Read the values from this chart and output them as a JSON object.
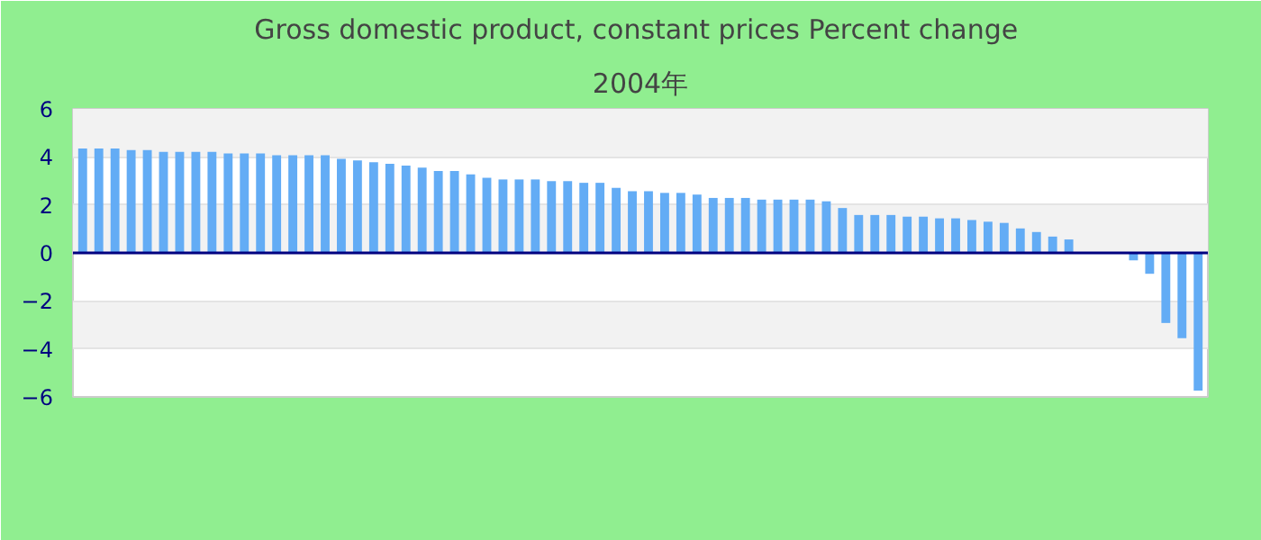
{
  "chart_data": {
    "type": "bar",
    "title": "Gross domestic product, constant prices  Percent change",
    "subtitle": "2004年",
    "categories": [
      null,
      null,
      null,
      null,
      null,
      null,
      null,
      null,
      null,
      null,
      null,
      null,
      null,
      null,
      null,
      null,
      null,
      null,
      null,
      null,
      null,
      null,
      null,
      null,
      null,
      null,
      null,
      null,
      null,
      null,
      null,
      null,
      null,
      null,
      null,
      null,
      null,
      null,
      null,
      null,
      null,
      null,
      null,
      null,
      null,
      null,
      null,
      null,
      null,
      null,
      null,
      null,
      null,
      null,
      null,
      null,
      null,
      null,
      null,
      null,
      null,
      null,
      null,
      null,
      null,
      null,
      null,
      null,
      null,
      null
    ],
    "values": [
      4.35,
      4.35,
      4.35,
      4.28,
      4.28,
      4.21,
      4.21,
      4.21,
      4.21,
      4.14,
      4.14,
      4.14,
      4.07,
      4.07,
      4.07,
      4.07,
      3.92,
      3.85,
      3.78,
      3.71,
      3.64,
      3.55,
      3.41,
      3.41,
      3.27,
      3.13,
      3.06,
      3.06,
      3.06,
      2.99,
      2.99,
      2.92,
      2.92,
      2.71,
      2.57,
      2.57,
      2.5,
      2.5,
      2.43,
      2.29,
      2.29,
      2.29,
      2.22,
      2.22,
      2.22,
      2.22,
      2.15,
      1.87,
      1.58,
      1.58,
      1.58,
      1.51,
      1.51,
      1.44,
      1.44,
      1.37,
      1.3,
      1.25,
      1.02,
      0.87,
      0.68,
      0.56,
      0,
      0,
      0,
      -0.31,
      -0.87,
      -2.92,
      -3.55,
      -5.74
    ],
    "color": "#63acf5",
    "ylim": [
      -6,
      6
    ],
    "yticks": [
      -6,
      -4,
      -2,
      0,
      2,
      4,
      6
    ],
    "grid": "y",
    "ref_lines": [
      {
        "axis": "y",
        "value": 0,
        "color": "#000080"
      }
    ]
  }
}
